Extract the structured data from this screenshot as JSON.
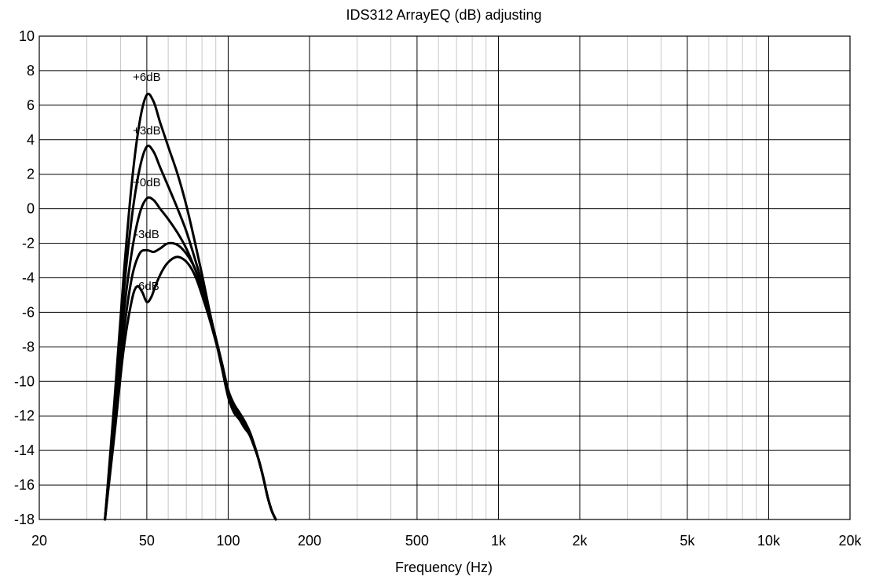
{
  "chart_data": {
    "type": "line",
    "title": "IDS312 ArrayEQ (dB) adjusting",
    "xlabel": "Frequency (Hz)",
    "ylabel": "",
    "x_scale": "log",
    "xlim": [
      20,
      20000
    ],
    "ylim": [
      -18,
      10
    ],
    "grid": true,
    "x_ticks": [
      {
        "value": 20,
        "label": "20"
      },
      {
        "value": 50,
        "label": "50"
      },
      {
        "value": 100,
        "label": "100"
      },
      {
        "value": 200,
        "label": "200"
      },
      {
        "value": 500,
        "label": "500"
      },
      {
        "value": 1000,
        "label": "1k"
      },
      {
        "value": 2000,
        "label": "2k"
      },
      {
        "value": 5000,
        "label": "5k"
      },
      {
        "value": 10000,
        "label": "10k"
      },
      {
        "value": 20000,
        "label": "20k"
      }
    ],
    "y_ticks": [
      10,
      8,
      6,
      4,
      2,
      0,
      -2,
      -4,
      -6,
      -8,
      -10,
      -12,
      -14,
      -16,
      -18
    ],
    "series": [
      {
        "name": "+6dB",
        "label_at": {
          "x": 50,
          "y": 7.4
        },
        "points": [
          [
            35,
            -18
          ],
          [
            38,
            -11
          ],
          [
            41,
            -4
          ],
          [
            44,
            1.5
          ],
          [
            47,
            5.0
          ],
          [
            50,
            6.6
          ],
          [
            53,
            6.2
          ],
          [
            56,
            5.0
          ],
          [
            60,
            3.6
          ],
          [
            65,
            2.0
          ],
          [
            70,
            0.2
          ],
          [
            75,
            -1.8
          ],
          [
            80,
            -3.8
          ],
          [
            85,
            -5.8
          ],
          [
            90,
            -7.6
          ],
          [
            95,
            -9.3
          ],
          [
            100,
            -10.9
          ],
          [
            105,
            -11.8
          ],
          [
            110,
            -12.2
          ],
          [
            115,
            -12.7
          ],
          [
            120,
            -13.1
          ],
          [
            125,
            -13.8
          ],
          [
            130,
            -14.6
          ],
          [
            135,
            -15.6
          ],
          [
            140,
            -16.7
          ],
          [
            145,
            -17.5
          ],
          [
            150,
            -18
          ]
        ]
      },
      {
        "name": "+3dB",
        "label_at": {
          "x": 50,
          "y": 4.3
        },
        "points": [
          [
            35,
            -18
          ],
          [
            38,
            -11.5
          ],
          [
            41,
            -5.0
          ],
          [
            44,
            -0.5
          ],
          [
            47,
            2.3
          ],
          [
            50,
            3.6
          ],
          [
            53,
            3.3
          ],
          [
            56,
            2.4
          ],
          [
            60,
            1.3
          ],
          [
            65,
            0.0
          ],
          [
            70,
            -1.3
          ],
          [
            75,
            -2.8
          ],
          [
            80,
            -4.3
          ],
          [
            85,
            -5.9
          ],
          [
            90,
            -7.5
          ],
          [
            95,
            -9.1
          ],
          [
            100,
            -10.7
          ],
          [
            105,
            -11.7
          ],
          [
            110,
            -12.1
          ],
          [
            115,
            -12.6
          ],
          [
            120,
            -13.1
          ],
          [
            125,
            -13.8
          ],
          [
            130,
            -14.6
          ],
          [
            135,
            -15.6
          ],
          [
            140,
            -16.7
          ],
          [
            145,
            -17.5
          ],
          [
            150,
            -18
          ]
        ]
      },
      {
        "name": "+0dB",
        "label_at": {
          "x": 50,
          "y": 1.3
        },
        "points": [
          [
            35,
            -18
          ],
          [
            38,
            -12
          ],
          [
            41,
            -6.2
          ],
          [
            44,
            -2.5
          ],
          [
            47,
            -0.3
          ],
          [
            50,
            0.6
          ],
          [
            53,
            0.5
          ],
          [
            56,
            0.0
          ],
          [
            60,
            -0.6
          ],
          [
            65,
            -1.4
          ],
          [
            70,
            -2.3
          ],
          [
            75,
            -3.4
          ],
          [
            80,
            -4.6
          ],
          [
            85,
            -6.0
          ],
          [
            90,
            -7.5
          ],
          [
            95,
            -9.0
          ],
          [
            100,
            -10.6
          ],
          [
            105,
            -11.5
          ],
          [
            110,
            -12.0
          ],
          [
            115,
            -12.5
          ],
          [
            120,
            -13.0
          ],
          [
            125,
            -13.7
          ],
          [
            130,
            -14.6
          ],
          [
            135,
            -15.6
          ],
          [
            140,
            -16.7
          ],
          [
            145,
            -17.5
          ],
          [
            150,
            -18
          ]
        ]
      },
      {
        "name": "-3dB",
        "label_at": {
          "x": 50,
          "y": -1.7
        },
        "points": [
          [
            35,
            -18
          ],
          [
            38,
            -12.5
          ],
          [
            41,
            -7.3
          ],
          [
            44,
            -4.0
          ],
          [
            47,
            -2.6
          ],
          [
            50,
            -2.4
          ],
          [
            53,
            -2.5
          ],
          [
            56,
            -2.3
          ],
          [
            60,
            -2.0
          ],
          [
            65,
            -2.1
          ],
          [
            70,
            -2.6
          ],
          [
            75,
            -3.4
          ],
          [
            80,
            -4.6
          ],
          [
            85,
            -6.0
          ],
          [
            90,
            -7.5
          ],
          [
            95,
            -9.0
          ],
          [
            100,
            -10.5
          ],
          [
            105,
            -11.4
          ],
          [
            110,
            -11.9
          ],
          [
            115,
            -12.4
          ],
          [
            120,
            -12.9
          ],
          [
            125,
            -13.7
          ],
          [
            130,
            -14.6
          ],
          [
            135,
            -15.6
          ],
          [
            140,
            -16.7
          ],
          [
            145,
            -17.5
          ],
          [
            150,
            -18
          ]
        ]
      },
      {
        "name": "-6dB",
        "label_at": {
          "x": 50,
          "y": -4.7
        },
        "points": [
          [
            35,
            -18
          ],
          [
            38,
            -13
          ],
          [
            41,
            -8.2
          ],
          [
            44,
            -5.3
          ],
          [
            46,
            -4.5
          ],
          [
            48,
            -4.8
          ],
          [
            50,
            -5.4
          ],
          [
            52,
            -5.1
          ],
          [
            54,
            -4.4
          ],
          [
            57,
            -3.6
          ],
          [
            60,
            -3.1
          ],
          [
            64,
            -2.8
          ],
          [
            68,
            -2.9
          ],
          [
            72,
            -3.3
          ],
          [
            76,
            -4.0
          ],
          [
            80,
            -5.0
          ],
          [
            85,
            -6.3
          ],
          [
            90,
            -7.7
          ],
          [
            95,
            -9.1
          ],
          [
            100,
            -10.5
          ],
          [
            105,
            -11.3
          ],
          [
            110,
            -11.8
          ],
          [
            115,
            -12.3
          ],
          [
            120,
            -12.9
          ],
          [
            125,
            -13.7
          ],
          [
            130,
            -14.6
          ],
          [
            135,
            -15.6
          ],
          [
            140,
            -16.7
          ],
          [
            145,
            -17.5
          ],
          [
            150,
            -18
          ]
        ]
      }
    ]
  }
}
